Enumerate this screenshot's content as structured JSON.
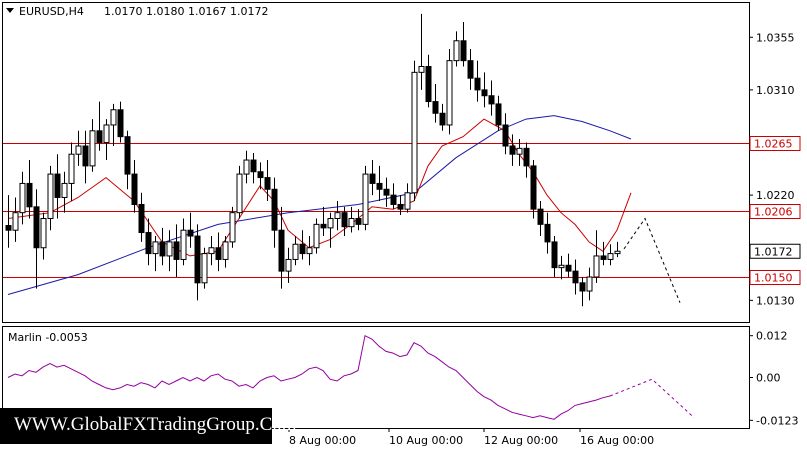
{
  "header": {
    "symbol": "EURUSD,H4",
    "ohlc": "1.0170 1.0180 1.0167 1.0172"
  },
  "indicator": {
    "label": "Marlin -0.0053"
  },
  "watermark": "WWW.GlobalFXTradingGroup.Com",
  "colors": {
    "bull_body": "#ffffff",
    "bear_body": "#000000",
    "level_line": "#cc0000",
    "ma_fast": "#cc0000",
    "ma_slow": "#1a1aaa",
    "oscillator": "#9400a0",
    "badge_bg": "#ffffff"
  },
  "chart_data": [
    {
      "type": "candlestick",
      "title": "EURUSD,H4",
      "y_ticks": [
        "1.0355",
        "1.0310",
        "1.0220",
        "1.0130"
      ],
      "x_ticks": [
        "8 Aug 00:00",
        "10 Aug 00:00",
        "12 Aug 00:00",
        "16 Aug 00:00"
      ],
      "ylim": [
        1.01115,
        1.03843
      ],
      "levels": [
        {
          "name": "1.0265",
          "value": 1.0265
        },
        {
          "name": "1.0206",
          "value": 1.0206
        },
        {
          "name": "1.0150",
          "value": 1.015
        }
      ],
      "current_price": "1.0172",
      "candles": [
        [
          1.0194,
          1.022,
          1.0175,
          1.019
        ],
        [
          1.019,
          1.0218,
          1.018,
          1.0205
        ],
        [
          1.0205,
          1.024,
          1.0195,
          1.023
        ],
        [
          1.023,
          1.025,
          1.02,
          1.021
        ],
        [
          1.021,
          1.0225,
          1.014,
          1.0175
        ],
        [
          1.0175,
          1.0205,
          1.0165,
          1.02
        ],
        [
          1.02,
          1.0245,
          1.019,
          1.0238
        ],
        [
          1.0238,
          1.0255,
          1.02,
          1.0218
        ],
        [
          1.0218,
          1.024,
          1.0205,
          1.023
        ],
        [
          1.023,
          1.0265,
          1.0215,
          1.0255
        ],
        [
          1.0255,
          1.0275,
          1.0245,
          1.0262
        ],
        [
          1.0262,
          1.0275,
          1.023,
          1.0245
        ],
        [
          1.0245,
          1.0285,
          1.024,
          1.0275
        ],
        [
          1.0275,
          1.03,
          1.0258,
          1.0265
        ],
        [
          1.0265,
          1.0285,
          1.025,
          1.028
        ],
        [
          1.028,
          1.0298,
          1.0262,
          1.0293
        ],
        [
          1.0293,
          1.03,
          1.0265,
          1.027
        ],
        [
          1.027,
          1.0275,
          1.0225,
          1.0238
        ],
        [
          1.0238,
          1.025,
          1.0205,
          1.0212
        ],
        [
          1.0212,
          1.0222,
          1.018,
          1.0188
        ],
        [
          1.0188,
          1.02,
          1.016,
          1.017
        ],
        [
          1.017,
          1.0185,
          1.0155,
          1.018
        ],
        [
          1.018,
          1.0192,
          1.016,
          1.0168
        ],
        [
          1.0168,
          1.019,
          1.0155,
          1.018
        ],
        [
          1.018,
          1.0195,
          1.015,
          1.0165
        ],
        [
          1.0165,
          1.02,
          1.016,
          1.019
        ],
        [
          1.019,
          1.0205,
          1.0175,
          1.0185
        ],
        [
          1.0185,
          1.0195,
          1.013,
          1.0145
        ],
        [
          1.0145,
          1.0175,
          1.014,
          1.017
        ],
        [
          1.017,
          1.0185,
          1.016,
          1.0175
        ],
        [
          1.0175,
          1.0188,
          1.0155,
          1.0165
        ],
        [
          1.0165,
          1.0185,
          1.0158,
          1.018
        ],
        [
          1.018,
          1.021,
          1.0175,
          1.0205
        ],
        [
          1.0205,
          1.0245,
          1.02,
          1.0238
        ],
        [
          1.0238,
          1.0258,
          1.023,
          1.025
        ],
        [
          1.025,
          1.0256,
          1.023,
          1.024
        ],
        [
          1.024,
          1.0248,
          1.0225,
          1.0235
        ],
        [
          1.0235,
          1.025,
          1.0215,
          1.0225
        ],
        [
          1.0225,
          1.0235,
          1.0175,
          1.019
        ],
        [
          1.019,
          1.021,
          1.014,
          1.0155
        ],
        [
          1.0155,
          1.0175,
          1.0145,
          1.0165
        ],
        [
          1.0165,
          1.0185,
          1.016,
          1.0178
        ],
        [
          1.0178,
          1.019,
          1.0165,
          1.017
        ],
        [
          1.017,
          1.0185,
          1.016,
          1.0175
        ],
        [
          1.0175,
          1.02,
          1.017,
          1.0195
        ],
        [
          1.0195,
          1.021,
          1.0185,
          1.0192
        ],
        [
          1.0192,
          1.0205,
          1.0175,
          1.02
        ],
        [
          1.02,
          1.0215,
          1.019,
          1.0205
        ],
        [
          1.0205,
          1.021,
          1.0185,
          1.0193
        ],
        [
          1.0193,
          1.021,
          1.0188,
          1.02
        ],
        [
          1.02,
          1.0208,
          1.019,
          1.0195
        ],
        [
          1.0195,
          1.0245,
          1.019,
          1.0238
        ],
        [
          1.0238,
          1.025,
          1.022,
          1.023
        ],
        [
          1.023,
          1.0245,
          1.0215,
          1.0225
        ],
        [
          1.0225,
          1.0235,
          1.021,
          1.022
        ],
        [
          1.022,
          1.023,
          1.0208,
          1.0212
        ],
        [
          1.0212,
          1.022,
          1.0203,
          1.0208
        ],
        [
          1.0208,
          1.023,
          1.0205,
          1.0222
        ],
        [
          1.0222,
          1.0335,
          1.0215,
          1.0325
        ],
        [
          1.0325,
          1.0375,
          1.031,
          1.033
        ],
        [
          1.033,
          1.034,
          1.0295,
          1.03
        ],
        [
          1.03,
          1.0315,
          1.0282,
          1.029
        ],
        [
          1.029,
          1.0298,
          1.0275,
          1.028
        ],
        [
          1.028,
          1.0345,
          1.0272,
          1.0335
        ],
        [
          1.0335,
          1.036,
          1.033,
          1.0352
        ],
        [
          1.0352,
          1.0368,
          1.033,
          1.0335
        ],
        [
          1.0335,
          1.0345,
          1.031,
          1.032
        ],
        [
          1.032,
          1.0335,
          1.03,
          1.031
        ],
        [
          1.031,
          1.0325,
          1.0295,
          1.0305
        ],
        [
          1.0305,
          1.0318,
          1.0288,
          1.0298
        ],
        [
          1.0298,
          1.0305,
          1.0275,
          1.028
        ],
        [
          1.028,
          1.029,
          1.0255,
          1.0262
        ],
        [
          1.0262,
          1.0272,
          1.0245,
          1.0255
        ],
        [
          1.0255,
          1.0268,
          1.0245,
          1.026
        ],
        [
          1.026,
          1.0265,
          1.0235,
          1.0245
        ],
        [
          1.0245,
          1.025,
          1.02,
          1.0208
        ],
        [
          1.0208,
          1.0215,
          1.0185,
          1.0195
        ],
        [
          1.0195,
          1.0205,
          1.017,
          1.018
        ],
        [
          1.018,
          1.0185,
          1.015,
          1.0158
        ],
        [
          1.0158,
          1.0168,
          1.0148,
          1.016
        ],
        [
          1.016,
          1.017,
          1.015,
          1.0155
        ],
        [
          1.0155,
          1.0165,
          1.0135,
          1.0145
        ],
        [
          1.0145,
          1.015,
          1.0125,
          1.0138
        ],
        [
          1.0138,
          1.0158,
          1.013,
          1.015
        ],
        [
          1.015,
          1.019,
          1.0145,
          1.0168
        ],
        [
          1.0168,
          1.018,
          1.016,
          1.0165
        ],
        [
          1.0165,
          1.0178,
          1.016,
          1.017
        ],
        [
          1.017,
          1.018,
          1.0167,
          1.0172
        ]
      ],
      "ma_fast": [
        [
          0,
          1.02
        ],
        [
          6,
          1.0205
        ],
        [
          10,
          1.0218
        ],
        [
          14,
          1.0235
        ],
        [
          18,
          1.0215
        ],
        [
          22,
          1.018
        ],
        [
          26,
          1.0168
        ],
        [
          30,
          1.0172
        ],
        [
          33,
          1.02
        ],
        [
          36,
          1.0228
        ],
        [
          38,
          1.0215
        ],
        [
          40,
          1.019
        ],
        [
          43,
          1.0175
        ],
        [
          46,
          1.0182
        ],
        [
          49,
          1.0195
        ],
        [
          52,
          1.021
        ],
        [
          55,
          1.0208
        ],
        [
          58,
          1.0215
        ],
        [
          60,
          1.0245
        ],
        [
          62,
          1.0262
        ],
        [
          65,
          1.027
        ],
        [
          68,
          1.0285
        ],
        [
          71,
          1.0275
        ],
        [
          73,
          1.0255
        ],
        [
          75,
          1.024
        ],
        [
          77,
          1.022
        ],
        [
          79,
          1.0205
        ],
        [
          81,
          1.0195
        ],
        [
          83,
          1.018
        ],
        [
          85,
          1.0172
        ],
        [
          87,
          1.019
        ],
        [
          89,
          1.0222
        ]
      ],
      "ma_slow": [
        [
          0,
          1.0135
        ],
        [
          10,
          1.0152
        ],
        [
          20,
          1.0175
        ],
        [
          30,
          1.0195
        ],
        [
          40,
          1.0205
        ],
        [
          50,
          1.0212
        ],
        [
          58,
          1.0222
        ],
        [
          64,
          1.0252
        ],
        [
          70,
          1.0275
        ],
        [
          74,
          1.0285
        ],
        [
          78,
          1.0288
        ],
        [
          82,
          1.0283
        ],
        [
          86,
          1.0275
        ],
        [
          89,
          1.0268
        ]
      ],
      "projection": [
        [
          88,
          1.0174
        ],
        [
          91,
          1.02
        ],
        [
          96,
          1.0128
        ]
      ]
    },
    {
      "type": "line",
      "title": "Marlin -0.0053",
      "y_ticks": [
        "0.012",
        "0.00",
        "-0.0123"
      ],
      "ylim": [
        -0.0145,
        0.0145
      ],
      "values": [
        0.0,
        0.001,
        0.0005,
        0.002,
        0.0015,
        0.003,
        0.004,
        0.003,
        0.0035,
        0.0025,
        0.0015,
        0.0005,
        -0.001,
        -0.002,
        -0.003,
        -0.0035,
        -0.003,
        -0.002,
        -0.0025,
        -0.0015,
        -0.002,
        -0.003,
        -0.001,
        -0.002,
        -0.001,
        0.0,
        -0.001,
        0.0,
        -0.001,
        0.0005,
        0.001,
        -0.0005,
        -0.001,
        -0.0025,
        -0.002,
        -0.003,
        -0.001,
        0.0,
        0.0005,
        -0.001,
        -0.0005,
        0.0,
        0.001,
        0.0025,
        0.003,
        0.002,
        -0.0005,
        -0.001,
        0.0005,
        0.001,
        0.002,
        0.012,
        0.011,
        0.009,
        0.0075,
        0.007,
        0.006,
        0.0065,
        0.01,
        0.009,
        0.007,
        0.006,
        0.0045,
        0.003,
        0.002,
        0.0,
        -0.002,
        -0.004,
        -0.0055,
        -0.0065,
        -0.008,
        -0.009,
        -0.01,
        -0.0105,
        -0.011,
        -0.0115,
        -0.011,
        -0.0115,
        -0.012,
        -0.0105,
        -0.0095,
        -0.008,
        -0.0075,
        -0.007,
        -0.0065,
        -0.0058,
        -0.0053
      ],
      "projection": [
        [
          86,
          -0.0053
        ],
        [
          92,
          -0.0005
        ],
        [
          98,
          -0.0115
        ]
      ]
    }
  ]
}
